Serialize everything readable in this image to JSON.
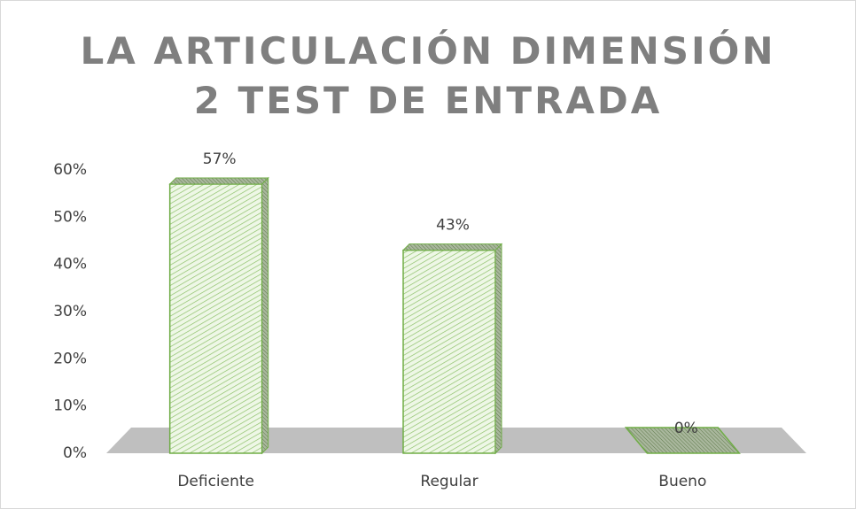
{
  "chart_data": {
    "type": "bar3d",
    "title": "LA ARTICULACIÓN DIMENSIÓN 2 TEST DE ENTRADA",
    "categories": [
      "Deficiente",
      "Regular",
      "Bueno"
    ],
    "values": [
      57,
      43,
      0
    ],
    "value_labels": [
      "57%",
      "43%",
      "0%"
    ],
    "color": "#70ad47",
    "ylim": [
      0,
      60
    ],
    "yticks": [
      {
        "value": 0,
        "label": "0%"
      },
      {
        "value": 10,
        "label": "10%"
      },
      {
        "value": 20,
        "label": "20%"
      },
      {
        "value": 30,
        "label": "30%"
      },
      {
        "value": 40,
        "label": "40%"
      },
      {
        "value": 50,
        "label": "50%"
      },
      {
        "value": 60,
        "label": "60%"
      }
    ]
  }
}
